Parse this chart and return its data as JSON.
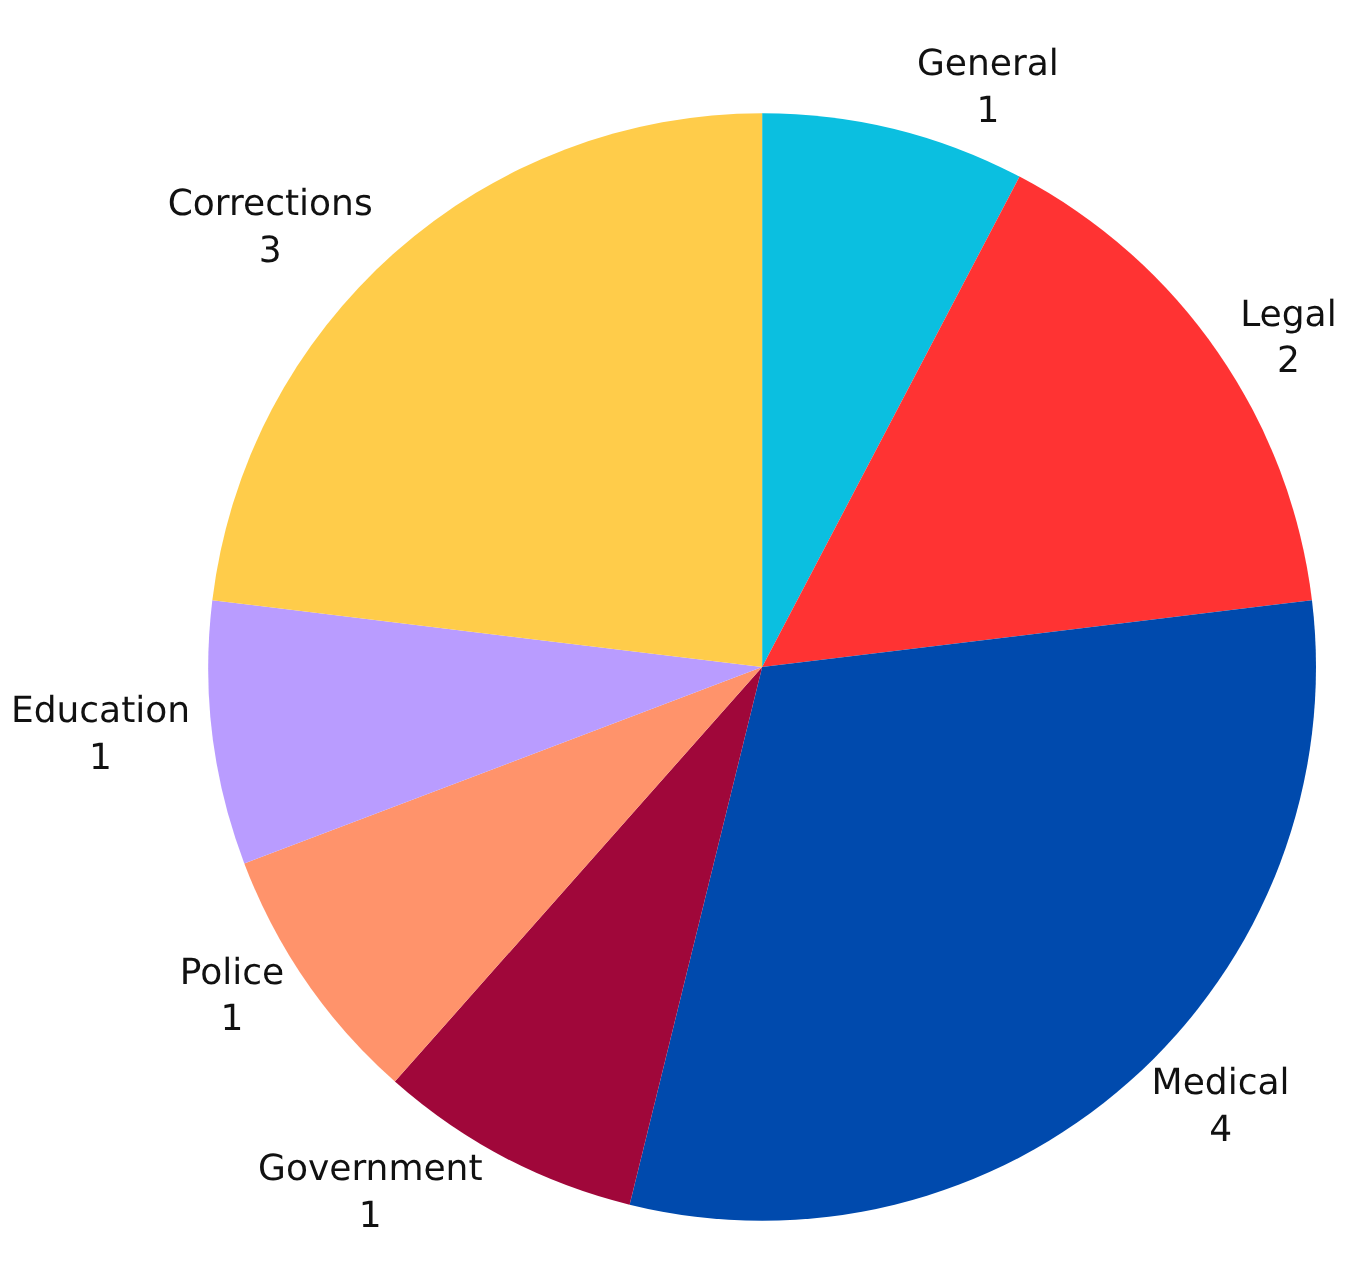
{
  "chart_data": {
    "type": "pie",
    "categories": [
      "General",
      "Legal",
      "Medical",
      "Government",
      "Police",
      "Education",
      "Corrections"
    ],
    "values": [
      1,
      2,
      4,
      1,
      1,
      1,
      3
    ],
    "colors": [
      "#0bbfe0",
      "#ff3333",
      "#004aad",
      "#a0073a",
      "#ff936b",
      "#b99cff",
      "#ffcc4a"
    ],
    "data_labels": true,
    "legend": false
  }
}
